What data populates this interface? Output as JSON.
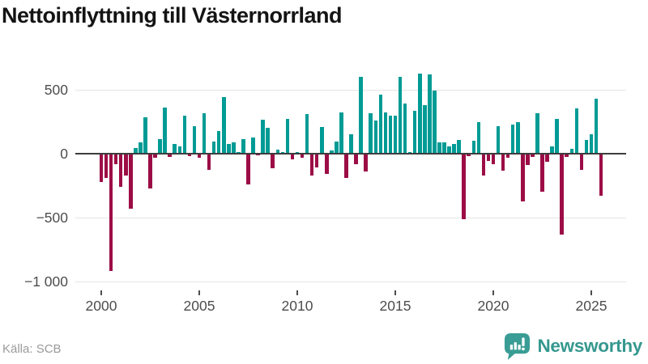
{
  "title": "Nettoinflyttning till Västernorrland",
  "source": "Källa: SCB",
  "brand": {
    "name": "Newsworthy",
    "icon": "newsworthy-speech-bubble-bar-chart-icon"
  },
  "colors": {
    "positive": "#009B95",
    "negative": "#9C0D46",
    "axis": "#3D3D3D",
    "grid": "#E4E4E4",
    "title": "#141414",
    "tick_label": "#4D4D4D",
    "source_text": "#9A9A9A",
    "brand_teal": "#35988F"
  },
  "chart_data": {
    "type": "bar",
    "title": "Nettoinflyttning till Västernorrland",
    "xlabel": "",
    "ylabel": "",
    "grid": true,
    "legend": "none",
    "frequency": "quarterly",
    "ylim": [
      -1050,
      665
    ],
    "y_ticks": [
      500,
      0,
      -500,
      -1000
    ],
    "y_tick_labels": [
      "500",
      "0",
      "−500",
      "−1 000"
    ],
    "x_tick_labels": [
      "2000",
      "2005",
      "2010",
      "2015",
      "2020",
      "2025"
    ],
    "categories": [
      "2000 Q1",
      "2000 Q2",
      "2000 Q3",
      "2000 Q4",
      "2001 Q1",
      "2001 Q2",
      "2001 Q3",
      "2001 Q4",
      "2002 Q1",
      "2002 Q2",
      "2002 Q3",
      "2002 Q4",
      "2003 Q1",
      "2003 Q2",
      "2003 Q3",
      "2003 Q4",
      "2004 Q1",
      "2004 Q2",
      "2004 Q3",
      "2004 Q4",
      "2005 Q1",
      "2005 Q2",
      "2005 Q3",
      "2005 Q4",
      "2006 Q1",
      "2006 Q2",
      "2006 Q3",
      "2006 Q4",
      "2007 Q1",
      "2007 Q2",
      "2007 Q3",
      "2007 Q4",
      "2008 Q1",
      "2008 Q2",
      "2008 Q3",
      "2008 Q4",
      "2009 Q1",
      "2009 Q2",
      "2009 Q3",
      "2009 Q4",
      "2010 Q1",
      "2010 Q2",
      "2010 Q3",
      "2010 Q4",
      "2011 Q1",
      "2011 Q2",
      "2011 Q3",
      "2011 Q4",
      "2012 Q1",
      "2012 Q2",
      "2012 Q3",
      "2012 Q4",
      "2013 Q1",
      "2013 Q2",
      "2013 Q3",
      "2013 Q4",
      "2014 Q1",
      "2014 Q2",
      "2014 Q3",
      "2014 Q4",
      "2015 Q1",
      "2015 Q2",
      "2015 Q3",
      "2015 Q4",
      "2016 Q1",
      "2016 Q2",
      "2016 Q3",
      "2016 Q4",
      "2017 Q1",
      "2017 Q2",
      "2017 Q3",
      "2017 Q4",
      "2018 Q1",
      "2018 Q2",
      "2018 Q3",
      "2018 Q4",
      "2019 Q1",
      "2019 Q2",
      "2019 Q3",
      "2019 Q4",
      "2020 Q1",
      "2020 Q2",
      "2020 Q3",
      "2020 Q4",
      "2021 Q1",
      "2021 Q2",
      "2021 Q3",
      "2021 Q4",
      "2022 Q1",
      "2022 Q2",
      "2022 Q3",
      "2022 Q4",
      "2023 Q1",
      "2023 Q2",
      "2023 Q3",
      "2023 Q4",
      "2024 Q1",
      "2024 Q2",
      "2024 Q3",
      "2024 Q4",
      "2025 Q1",
      "2025 Q2",
      "2025 Q3"
    ],
    "values": [
      -220,
      -190,
      -920,
      -85,
      -260,
      -170,
      -430,
      45,
      90,
      285,
      -270,
      -30,
      115,
      360,
      -25,
      75,
      55,
      300,
      -20,
      215,
      -30,
      315,
      -125,
      95,
      175,
      445,
      75,
      90,
      10,
      115,
      -240,
      125,
      -10,
      265,
      205,
      -115,
      30,
      10,
      270,
      -45,
      15,
      -30,
      310,
      -170,
      -105,
      210,
      -160,
      25,
      95,
      325,
      -190,
      150,
      -85,
      600,
      -140,
      315,
      260,
      460,
      320,
      295,
      295,
      600,
      390,
      10,
      335,
      625,
      380,
      620,
      495,
      90,
      90,
      55,
      75,
      110,
      -515,
      -20,
      100,
      245,
      -170,
      -60,
      -80,
      215,
      -135,
      -30,
      225,
      245,
      -375,
      -90,
      -25,
      315,
      -300,
      -65,
      55,
      270,
      -635,
      -25,
      40,
      355,
      -125,
      110,
      150,
      430,
      -330
    ]
  }
}
